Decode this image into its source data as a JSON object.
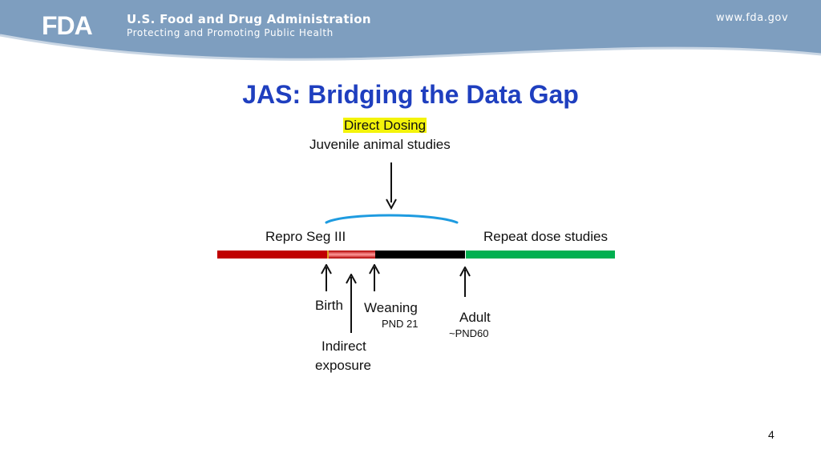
{
  "header": {
    "logo_text": "FDA",
    "agency_name": "U.S. Food and Drug Administration",
    "tagline": "Protecting and Promoting Public Health",
    "website": "www.fda.gov"
  },
  "slide": {
    "title": "JAS:  Bridging the Data Gap",
    "direct_dosing": "Direct Dosing",
    "juvenile_studies": "Juvenile animal studies",
    "repro_seg": "Repro Seg III",
    "repeat_dose": "Repeat dose studies",
    "birth": "Birth",
    "weaning": "Weaning",
    "weaning_pnd": "PND 21",
    "adult": "Adult",
    "adult_pnd": "~PND60",
    "indirect_line1": "Indirect",
    "indirect_line2": "exposure",
    "page_number": "4"
  },
  "colors": {
    "header_blue": "#7e9ebf",
    "title_blue": "#1f3fbf",
    "repro_red": "#c00000",
    "juvenile_black": "#000000",
    "adult_green": "#00b050",
    "bracket_blue": "#1e9be0",
    "highlight_yellow": "#f4f40a"
  }
}
